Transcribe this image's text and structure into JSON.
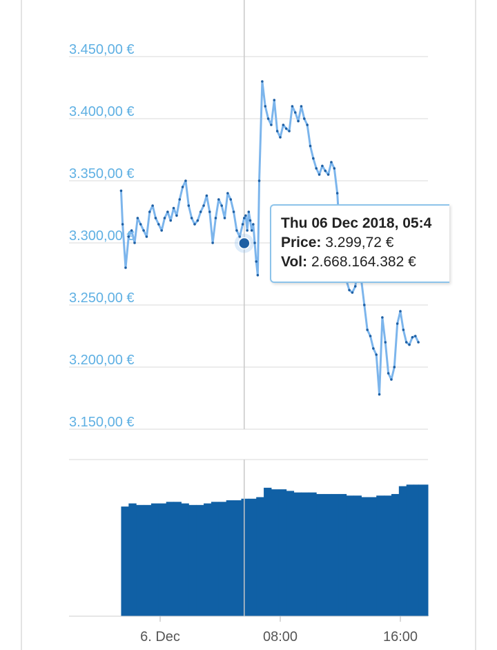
{
  "chart_data": {
    "type": "line",
    "price": {
      "ylim": [
        3150,
        3450
      ],
      "yticks": [
        "3.450,00 €",
        "3.400,00 €",
        "3.350,00 €",
        "3.300,00 €",
        "3.250,00 €",
        "3.200,00 €",
        "3.150,00 €"
      ],
      "ytick_values": [
        3450,
        3400,
        3350,
        3300,
        3250,
        3200,
        3150
      ],
      "x_hours": [
        -2.6,
        -2.5,
        -2.3,
        -2.1,
        -1.9,
        -1.7,
        -1.5,
        -1.3,
        -1.1,
        -0.9,
        -0.7,
        -0.5,
        -0.3,
        -0.1,
        0.1,
        0.3,
        0.5,
        0.7,
        0.9,
        1.1,
        1.3,
        1.5,
        1.7,
        1.9,
        2.1,
        2.3,
        2.5,
        2.7,
        2.9,
        3.1,
        3.3,
        3.5,
        3.7,
        3.9,
        4.1,
        4.3,
        4.5,
        4.7,
        4.9,
        5.1,
        5.3,
        5.5,
        5.6,
        5.7,
        5.8,
        5.9,
        6.0,
        6.1,
        6.2,
        6.3,
        6.4,
        6.5,
        6.6,
        6.8,
        7.0,
        7.2,
        7.4,
        7.6,
        7.8,
        8.0,
        8.2,
        8.4,
        8.6,
        8.8,
        9.0,
        9.2,
        9.4,
        9.6,
        9.8,
        10.0,
        10.2,
        10.4,
        10.6,
        10.8,
        11.0,
        11.2,
        11.4,
        11.6,
        11.8,
        12.0,
        12.2,
        12.4,
        12.6,
        12.8,
        13.0,
        13.2,
        13.4,
        13.6,
        13.8,
        14.0,
        14.2,
        14.4,
        14.6,
        14.8,
        15.0,
        15.2,
        15.4,
        15.6,
        15.8,
        16.0,
        16.2,
        16.4,
        16.6,
        16.8,
        17.0,
        17.2
      ],
      "values": [
        3342,
        3315,
        3280,
        3305,
        3310,
        3300,
        3320,
        3315,
        3310,
        3305,
        3325,
        3330,
        3320,
        3315,
        3310,
        3320,
        3325,
        3318,
        3328,
        3322,
        3335,
        3345,
        3350,
        3330,
        3320,
        3315,
        3318,
        3325,
        3330,
        3338,
        3325,
        3300,
        3320,
        3335,
        3330,
        3320,
        3340,
        3335,
        3325,
        3310,
        3305,
        3315,
        3320,
        3322,
        3310,
        3325,
        3318,
        3310,
        3315,
        3300,
        3285,
        3274,
        3350,
        3430,
        3410,
        3400,
        3395,
        3415,
        3390,
        3385,
        3395,
        3392,
        3390,
        3410,
        3405,
        3398,
        3410,
        3400,
        3395,
        3378,
        3368,
        3360,
        3355,
        3362,
        3358,
        3355,
        3365,
        3360,
        3340,
        3300,
        3280,
        3270,
        3262,
        3260,
        3265,
        3285,
        3270,
        3250,
        3230,
        3225,
        3215,
        3210,
        3178,
        3240,
        3220,
        3195,
        3190,
        3200,
        3235,
        3245,
        3230,
        3220,
        3218,
        3224,
        3225,
        3220
      ]
    },
    "volume": {
      "x_hours": [
        -2.6,
        -2.1,
        -1.6,
        -1.1,
        -0.6,
        -0.1,
        0.4,
        0.9,
        1.4,
        1.9,
        2.4,
        2.9,
        3.4,
        3.9,
        4.4,
        4.9,
        5.4,
        5.9,
        6.4,
        6.9,
        7.4,
        7.9,
        8.4,
        8.9,
        9.4,
        9.9,
        10.4,
        10.9,
        11.4,
        11.9,
        12.4,
        12.9,
        13.4,
        13.9,
        14.4,
        14.9,
        15.4,
        15.9,
        16.4,
        16.9,
        17.2
      ],
      "values": [
        70,
        72,
        71,
        71,
        72,
        72,
        73,
        73,
        72,
        71,
        71,
        72,
        73,
        73,
        74,
        74,
        75,
        75,
        76,
        82,
        81,
        81,
        80,
        79,
        79,
        79,
        78,
        78,
        78,
        78,
        77,
        77,
        76,
        76,
        77,
        77,
        78,
        83,
        84,
        84,
        84
      ],
      "ylim": [
        0,
        100
      ]
    },
    "x_ticks": [
      {
        "label": "6. Dec",
        "hour": 0
      },
      {
        "label": "08:00",
        "hour": 8
      },
      {
        "label": "16:00",
        "hour": 16
      }
    ],
    "crosshair_hour": 5.6,
    "highlight": {
      "hour": 5.6,
      "value": 3299.72
    }
  },
  "tooltip": {
    "title": "Thu 06 Dec 2018, 05:4",
    "price_label": "Price:",
    "price_value": "3.299,72 €",
    "vol_label": "Vol:",
    "vol_value": "2.668.164.382 €"
  },
  "colors": {
    "line": "#7cb5ec",
    "marker": "#1e5fa3",
    "volume": "#1060a5",
    "axis_text": "#5fb0e3",
    "grid": "#e6e6e6"
  }
}
